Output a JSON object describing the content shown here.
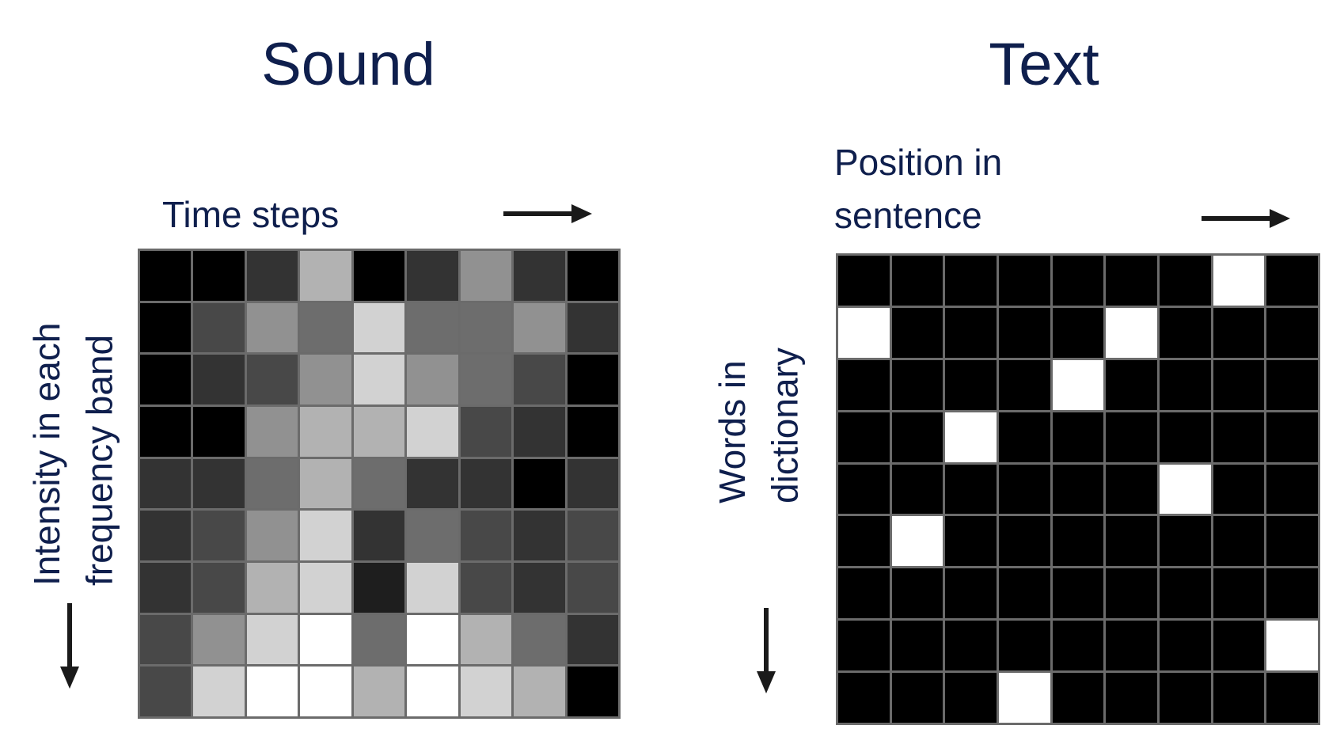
{
  "sound": {
    "title": "Sound",
    "x_label": "Time steps",
    "y_label": "Intensity in each\nfrequency band",
    "grid": [
      [
        0,
        0,
        51,
        178,
        0,
        51,
        145,
        51,
        0
      ],
      [
        0,
        72,
        145,
        109,
        210,
        109,
        109,
        145,
        51
      ],
      [
        0,
        51,
        72,
        145,
        210,
        145,
        109,
        72,
        0
      ],
      [
        0,
        0,
        145,
        178,
        178,
        210,
        72,
        51,
        0
      ],
      [
        51,
        51,
        109,
        178,
        109,
        51,
        51,
        0,
        51
      ],
      [
        51,
        72,
        145,
        210,
        51,
        109,
        72,
        51,
        72
      ],
      [
        51,
        72,
        178,
        210,
        30,
        210,
        72,
        51,
        72
      ],
      [
        72,
        145,
        210,
        255,
        109,
        255,
        178,
        109,
        51
      ],
      [
        72,
        210,
        255,
        255,
        178,
        255,
        210,
        178,
        0
      ]
    ]
  },
  "text": {
    "title": "Text",
    "x_label": "Position in\nsentence",
    "y_label": "Words in\ndictionary",
    "grid": [
      [
        0,
        0,
        0,
        0,
        0,
        0,
        0,
        255,
        0
      ],
      [
        255,
        0,
        0,
        0,
        0,
        255,
        0,
        0,
        0
      ],
      [
        0,
        0,
        0,
        0,
        255,
        0,
        0,
        0,
        0
      ],
      [
        0,
        0,
        255,
        0,
        0,
        0,
        0,
        0,
        0
      ],
      [
        0,
        0,
        0,
        0,
        0,
        0,
        255,
        0,
        0
      ],
      [
        0,
        255,
        0,
        0,
        0,
        0,
        0,
        0,
        0
      ],
      [
        0,
        0,
        0,
        0,
        0,
        0,
        0,
        0,
        0
      ],
      [
        0,
        0,
        0,
        0,
        0,
        0,
        0,
        0,
        255
      ],
      [
        0,
        0,
        0,
        255,
        0,
        0,
        0,
        0,
        0
      ]
    ]
  },
  "colors": {
    "title_text": "#0f1f4d",
    "grid_line": "#6b6b6b",
    "arrow": "#1a1a1a"
  }
}
